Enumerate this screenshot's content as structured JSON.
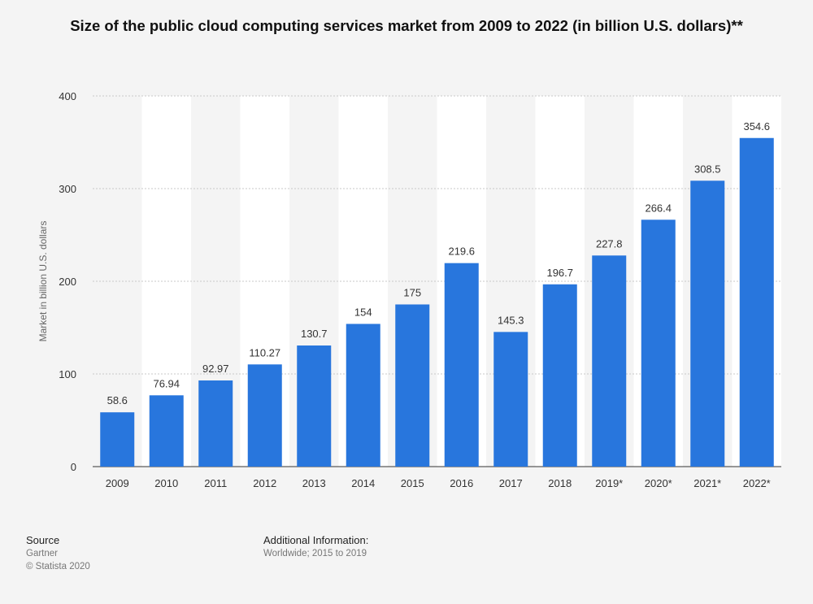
{
  "chart_data": {
    "type": "bar",
    "title": "Size of the public cloud computing services market from 2009 to 2022 (in billion U.S. dollars)**",
    "ylabel": "Market in billion U.S. dollars",
    "xlabel": "",
    "categories": [
      "2009",
      "2010",
      "2011",
      "2012",
      "2013",
      "2014",
      "2015",
      "2016",
      "2017",
      "2018",
      "2019*",
      "2020*",
      "2021*",
      "2022*"
    ],
    "values": [
      58.6,
      76.94,
      92.97,
      110.27,
      130.7,
      154,
      175,
      219.6,
      145.3,
      196.7,
      227.8,
      266.4,
      308.5,
      354.6
    ],
    "value_labels": [
      "58.6",
      "76.94",
      "92.97",
      "110.27",
      "130.7",
      "154",
      "175",
      "219.6",
      "145.3",
      "196.7",
      "227.8",
      "266.4",
      "308.5",
      "354.6"
    ],
    "ylim": [
      0,
      400
    ],
    "yticks": [
      "0",
      "100",
      "200",
      "300",
      "400"
    ],
    "grid": true,
    "bar_color": "#2876dd"
  },
  "footer": {
    "source_label": "Source",
    "source_value": "Gartner",
    "copyright": "© Statista 2020",
    "info_label": "Additional Information:",
    "info_value": "Worldwide; 2015 to 2019"
  }
}
